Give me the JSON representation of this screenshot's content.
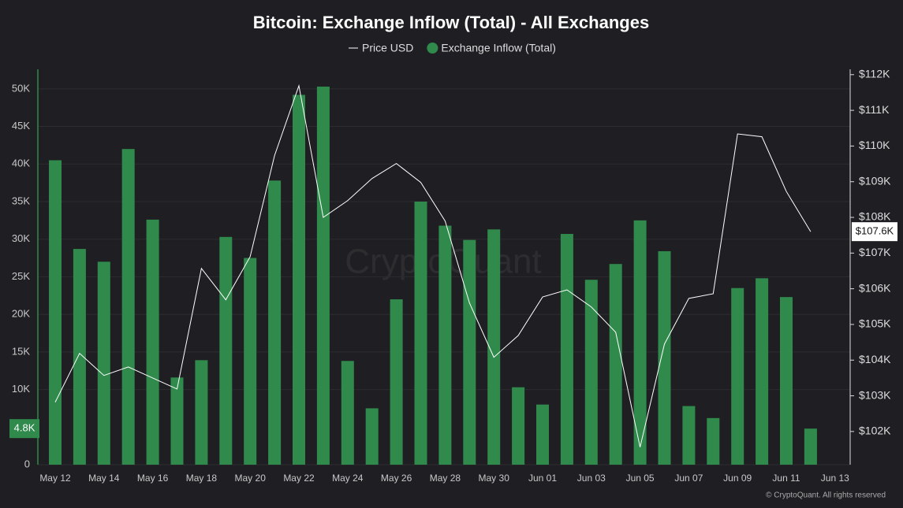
{
  "chart_data": {
    "type": "bar_line",
    "title": "Bitcoin: Exchange Inflow (Total) - All Exchanges",
    "watermark": "CryptoQuant",
    "footer": "© CryptoQuant. All rights reserved",
    "categories": [
      "May 12",
      null,
      "May 14",
      null,
      "May 16",
      null,
      "May 18",
      null,
      "May 20",
      null,
      "May 22",
      null,
      "May 24",
      null,
      "May 26",
      null,
      "May 28",
      null,
      "May 30",
      null,
      "Jun 01",
      null,
      "Jun 03",
      null,
      "Jun 05",
      null,
      "Jun 07",
      null,
      "Jun 09",
      null,
      "Jun 11",
      null,
      "Jun 13"
    ],
    "series": [
      {
        "name": "Price USD",
        "type": "line",
        "axis": "y2",
        "color": "#ffffff",
        "values": [
          102820,
          104190,
          103570,
          103810,
          103500,
          103190,
          106570,
          105690,
          106900,
          109730,
          111690,
          108000,
          108470,
          109090,
          109510,
          108980,
          107900,
          105600,
          104080,
          104690,
          105770,
          105970,
          105490,
          104780,
          101560,
          104450,
          105730,
          105860,
          110340,
          110260,
          108730,
          107600,
          null
        ],
        "value_labels": [
          null,
          null,
          null,
          null,
          null,
          null,
          null,
          null,
          null,
          null,
          null,
          null,
          null,
          null,
          null,
          null,
          null,
          null,
          null,
          null,
          null,
          null,
          null,
          null,
          null,
          null,
          null,
          null,
          null,
          null,
          null,
          "$107.6K",
          null
        ]
      },
      {
        "name": "Exchange Inflow (Total)",
        "type": "bar",
        "color": "#2f8a4c",
        "values": [
          40500,
          28700,
          27000,
          42000,
          32600,
          11600,
          13900,
          30300,
          27500,
          37800,
          49200,
          50300,
          13800,
          7500,
          22000,
          35000,
          31800,
          29900,
          31300,
          10300,
          8000,
          30700,
          24600,
          26700,
          32500,
          28400,
          7800,
          6200,
          23500,
          24800,
          22300,
          4800,
          null
        ],
        "value_labels": [
          null,
          null,
          null,
          null,
          null,
          null,
          null,
          null,
          null,
          null,
          null,
          null,
          null,
          null,
          null,
          null,
          null,
          null,
          null,
          null,
          null,
          null,
          null,
          null,
          null,
          null,
          null,
          null,
          null,
          null,
          null,
          "4.8K",
          null
        ]
      }
    ],
    "ylim": [
      0,
      52600
    ],
    "yticks": [
      0,
      {
        "value": 10000,
        "label": "10K"
      },
      {
        "value": 15000,
        "label": "15K"
      },
      {
        "value": 20000,
        "label": "20K"
      },
      {
        "value": 25000,
        "label": "25K"
      },
      {
        "value": 30000,
        "label": "30K"
      },
      {
        "value": 35000,
        "label": "35K"
      },
      {
        "value": 40000,
        "label": "40K"
      },
      {
        "value": 45000,
        "label": "45K"
      },
      {
        "value": 50000,
        "label": "50K"
      }
    ],
    "y2lim": [
      101070,
      112150
    ],
    "y2ticks": [
      {
        "value": 102000,
        "label": "$102K"
      },
      {
        "value": 103000,
        "label": "$103K"
      },
      {
        "value": 104000,
        "label": "$104K"
      },
      {
        "value": 105000,
        "label": "$105K"
      },
      {
        "value": 106000,
        "label": "$106K"
      },
      {
        "value": 107000,
        "label": "$107K"
      },
      {
        "value": 108000,
        "label": "$108K"
      },
      {
        "value": 109000,
        "label": "$109K"
      },
      {
        "value": 110000,
        "label": "$110K"
      },
      {
        "value": 111000,
        "label": "$111K"
      },
      {
        "value": 112000,
        "label": "$112K"
      }
    ],
    "grid": true
  }
}
